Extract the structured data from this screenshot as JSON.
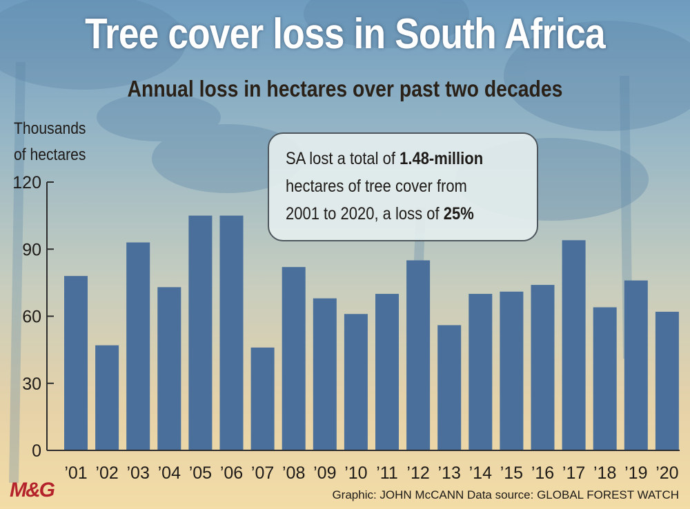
{
  "header": {
    "title": "Tree cover loss in South Africa",
    "subtitle": "Annual loss in hectares over past two decades"
  },
  "y_axis_label": [
    "Thousands",
    "of hectares"
  ],
  "callout": {
    "line1_prefix": "SA lost a total of ",
    "line1_bold": "1.48-million",
    "line2": "hectares of tree cover from",
    "line3_prefix": "2001 to 2020, a loss of ",
    "line3_bold": "25%"
  },
  "footer": {
    "logo": "M&G",
    "credit": "Graphic: JOHN McCANN  Data source: GLOBAL FOREST WATCH"
  },
  "colors": {
    "bar": "#4a6f9a",
    "axis": "#2b2b2b",
    "logo": "#b4232b"
  },
  "chart_data": {
    "type": "bar",
    "title": "Tree cover loss in South Africa",
    "subtitle": "Annual loss in hectares over past two decades",
    "ylabel": "Thousands of hectares",
    "xlabel": "",
    "categories": [
      "’01",
      "’02",
      "’03",
      "’04",
      "’05",
      "’06",
      "’07",
      "’08",
      "’09",
      "’10",
      "’11",
      "’12",
      "’13",
      "’14",
      "’15",
      "’16",
      "’17",
      "’18",
      "’19",
      "’20"
    ],
    "values": [
      78,
      47,
      93,
      73,
      105,
      105,
      46,
      82,
      68,
      61,
      70,
      85,
      56,
      70,
      71,
      74,
      94,
      64,
      76,
      62
    ],
    "ylim": [
      0,
      120
    ],
    "yticks": [
      0,
      30,
      60,
      90,
      120
    ],
    "grid": false,
    "legend": "none"
  }
}
